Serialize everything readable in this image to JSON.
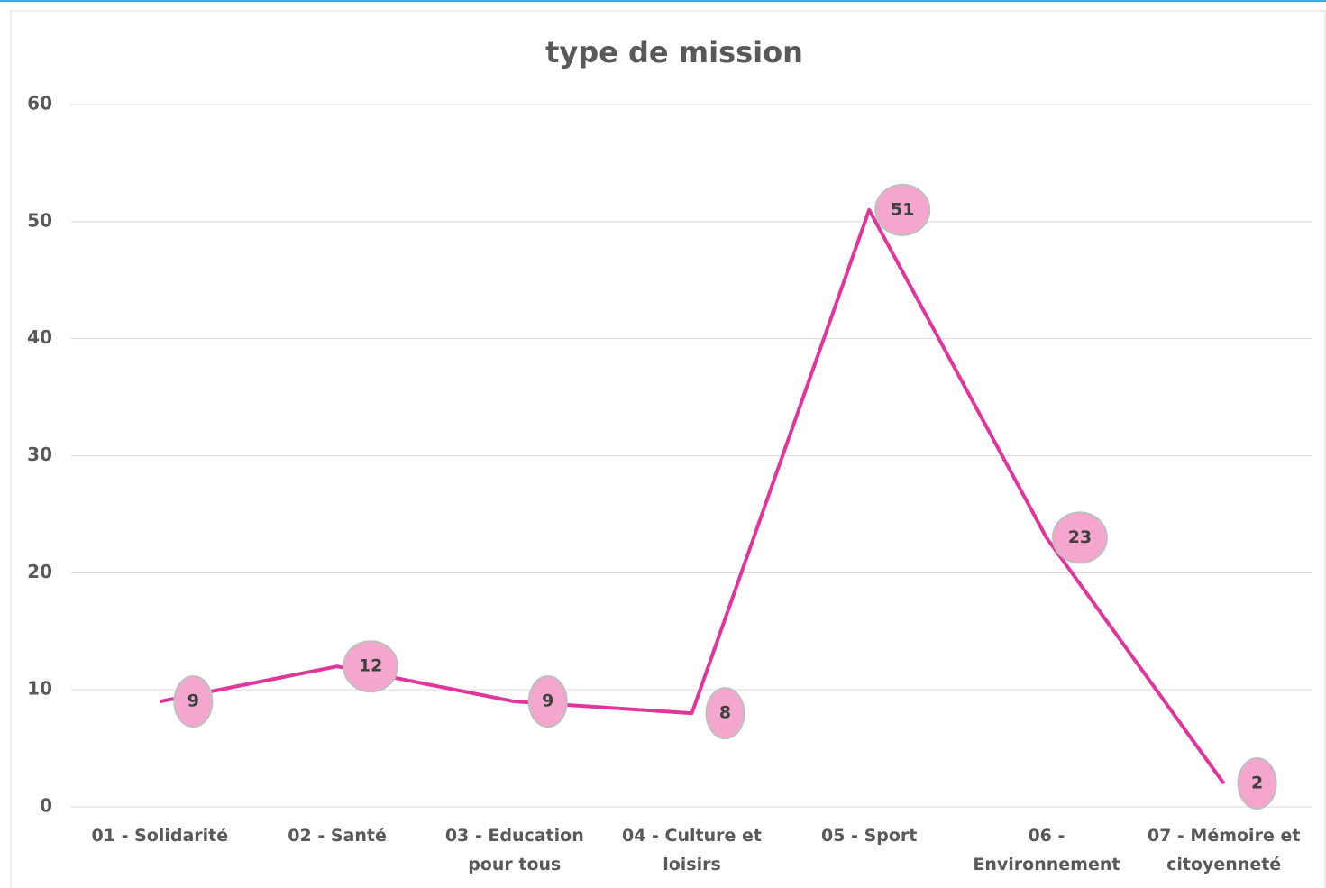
{
  "chart_data": {
    "type": "line",
    "title": "type de mission",
    "categories": [
      "01 - Solidarité",
      "02 - Santé",
      "03 - Education pour tous",
      "04 - Culture et loisirs",
      "05 - Sport",
      "06 - Environnement",
      "07 - Mémoire et citoyenneté"
    ],
    "values": [
      9,
      12,
      9,
      8,
      51,
      23,
      2
    ],
    "color": "#e0359b",
    "ylim": [
      0,
      60
    ],
    "yticks": [
      0,
      10,
      20,
      30,
      40,
      50,
      60
    ],
    "grid": true
  }
}
